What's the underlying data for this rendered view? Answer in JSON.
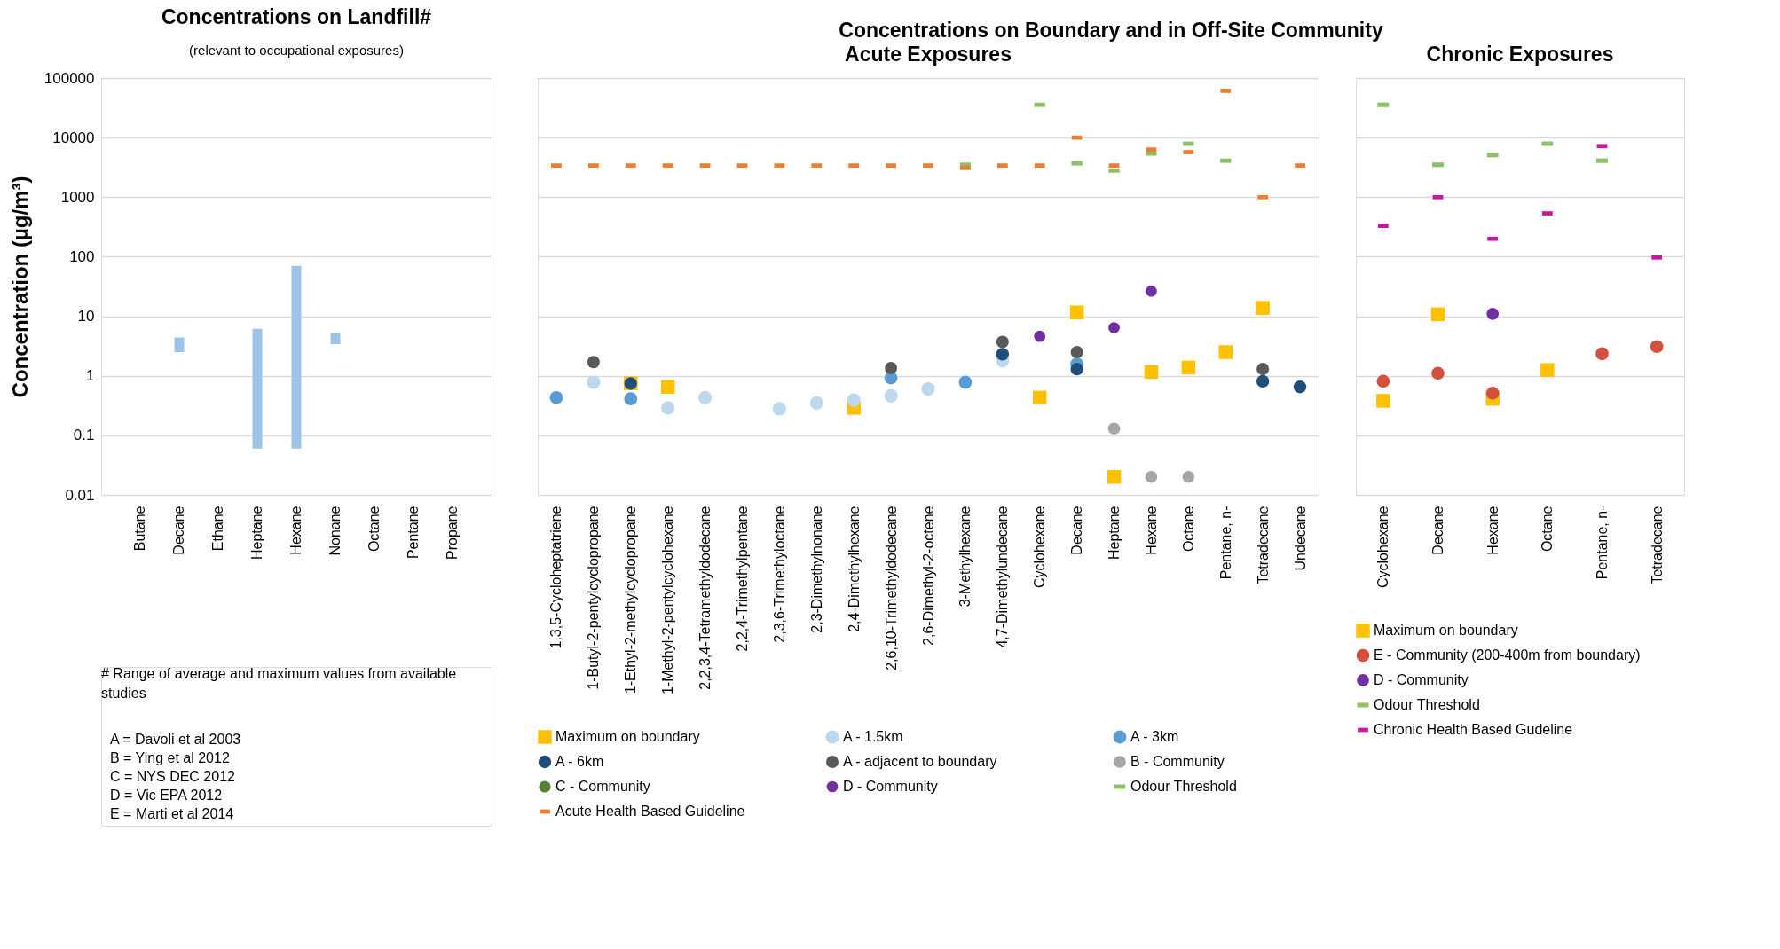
{
  "chart_data": [
    {
      "type": "bar",
      "title": "Concentrations on Landfill#",
      "subtitle": "(relevant to occupational exposures)",
      "ylabel": "Concentration (µg/m³)",
      "categories": [
        "Butane",
        "Decane",
        "Ethane",
        "Heptane",
        "Hexane",
        "Nonane",
        "Octane",
        "Pentane",
        "Propane"
      ],
      "base": [
        null,
        2.5,
        null,
        0.06,
        0.06,
        3.4,
        null,
        null,
        null
      ],
      "values": [
        null,
        1.9,
        null,
        6.1,
        70,
        1.8,
        null,
        null,
        null
      ],
      "color": "#9dc3e6",
      "log": true,
      "ylim": [
        0.01,
        100000
      ],
      "yticks": [
        0.01,
        0.1,
        1,
        10,
        100,
        1000,
        10000,
        100000
      ],
      "grid": "y",
      "annotations": [
        "# Range of average and maximum values from available studies",
        "A = Davoli et al 2003",
        "B = Ying et al 2012",
        "C = NYS DEC 2012",
        "D = Vic EPA 2012",
        "E = Marti et al 2014"
      ]
    },
    {
      "type": "scatter",
      "title": "Concentrations on Boundary and in Off-Site Community",
      "subtitle": "Acute Exposures",
      "categories": [
        "1,3,5-Cycloheptatriene",
        "1-Butyl-2-pentylcyclopropane",
        "1-Ethyl-2-methylcyclopropane",
        "1-Methyl-2-pentylcyclohexane",
        "2,2,3,4-Tetramethyldodecane",
        "2,2,4-Trimethylpentane",
        "2,3,6-Trimethyloctane",
        "2,3-Dimethylnonane",
        "2,4-Dimethylhexane",
        "2,6,10-Trimethyldodecane",
        "2,6-Dimethyl-2-octene",
        "3-Methylhexane",
        "4,7-Dimethylundecane",
        "Cyclohexane",
        "Decane",
        "Heptane",
        "Hexane",
        "Octane",
        "Pentane, n-",
        "Tetradecane",
        "Undecane"
      ],
      "series": [
        {
          "name": "Maximum on boundary",
          "color": "#ffc000",
          "marker": "square",
          "values": [
            null,
            null,
            0.75,
            0.65,
            null,
            null,
            null,
            null,
            0.29,
            null,
            null,
            null,
            null,
            0.43,
            11.6,
            0.02,
            1.16,
            1.38,
            2.5,
            13.8,
            null
          ]
        },
        {
          "name": "A - 1.5km",
          "color": "#bdd7ee",
          "marker": "circle",
          "values": [
            null,
            0.78,
            null,
            0.29,
            0.43,
            null,
            0.28,
            0.35,
            0.39,
            0.46,
            0.6,
            null,
            1.8,
            null,
            null,
            null,
            null,
            null,
            null,
            null,
            null
          ]
        },
        {
          "name": "A - 3km",
          "color": "#5b9bd5",
          "marker": "circle",
          "values": [
            0.43,
            null,
            0.41,
            null,
            null,
            null,
            null,
            null,
            null,
            0.92,
            null,
            0.78,
            null,
            null,
            1.57,
            null,
            null,
            null,
            null,
            null,
            null
          ]
        },
        {
          "name": "A - 6km",
          "color": "#1f4e79",
          "marker": "circle",
          "values": [
            null,
            null,
            0.74,
            null,
            null,
            null,
            null,
            null,
            null,
            null,
            null,
            null,
            2.3,
            null,
            1.3,
            null,
            null,
            null,
            null,
            0.81,
            0.65
          ]
        },
        {
          "name": "A - adjacent to boundary",
          "color": "#595959",
          "marker": "circle",
          "values": [
            null,
            1.7,
            null,
            null,
            null,
            null,
            null,
            null,
            null,
            1.35,
            null,
            null,
            3.7,
            null,
            2.5,
            null,
            null,
            null,
            null,
            1.3,
            null
          ]
        },
        {
          "name": "B - Community",
          "color": "#a5a5a5",
          "marker": "circle",
          "values": [
            null,
            null,
            null,
            null,
            null,
            null,
            null,
            null,
            null,
            null,
            null,
            null,
            null,
            null,
            null,
            0.13,
            0.02,
            0.02,
            null,
            null,
            null
          ]
        },
        {
          "name": "C - Community",
          "color": "#548235",
          "marker": "circle",
          "values": [
            null,
            null,
            null,
            null,
            null,
            null,
            null,
            null,
            null,
            null,
            null,
            null,
            null,
            null,
            null,
            null,
            null,
            null,
            null,
            null,
            null
          ]
        },
        {
          "name": "D - Community",
          "color": "#7030a0",
          "marker": "circle",
          "values": [
            null,
            null,
            null,
            null,
            null,
            null,
            null,
            null,
            null,
            null,
            null,
            null,
            null,
            4.6,
            null,
            6.4,
            26.5,
            null,
            null,
            null,
            null
          ]
        },
        {
          "name": "Odour Threshold",
          "color": "#8cc168",
          "values": [
            null,
            null,
            null,
            null,
            null,
            null,
            null,
            null,
            null,
            null,
            null,
            3500,
            null,
            35500,
            3700,
            2800,
            5400,
            7900,
            4100,
            null,
            null
          ]
        },
        {
          "name": "Acute Health Based Guideline",
          "color": "#ed7d31",
          "values": [
            3400,
            3400,
            3400,
            3400,
            3400,
            3400,
            3400,
            3400,
            3400,
            3400,
            3400,
            3100,
            3400,
            3400,
            10000,
            3400,
            6300,
            5700,
            61000,
            1000,
            3400
          ]
        }
      ],
      "log": true,
      "ylim": [
        0.01,
        100000
      ],
      "yticks": [
        0.01,
        0.1,
        1,
        10,
        100,
        1000,
        10000,
        100000
      ],
      "grid": "y",
      "tick_labels": "x",
      "legend": "bottom"
    },
    {
      "type": "scatter",
      "title": "Chronic Exposures",
      "categories": [
        "Cyclohexane",
        "Decane",
        "Hexane",
        "Octane",
        "Pentane, n-",
        "Tetradecane"
      ],
      "series": [
        {
          "name": "Maximum on boundary",
          "color": "#ffc000",
          "marker": "square",
          "values": [
            0.38,
            10.8,
            0.41,
            1.25,
            null,
            null
          ]
        },
        {
          "name": "E - Community (200-400m from boundary)",
          "color": "#d5503c",
          "marker": "circle",
          "values": [
            0.81,
            1.1,
            0.51,
            null,
            2.35,
            3.1
          ]
        },
        {
          "name": "D - Community",
          "color": "#7030a0",
          "marker": "circle",
          "values": [
            null,
            null,
            11,
            null,
            null,
            null
          ]
        },
        {
          "name": "Odour Threshold",
          "color": "#8cc168",
          "values": [
            35500,
            3500,
            5100,
            7900,
            4100,
            null
          ]
        },
        {
          "name": "Chronic Health Based Gudeline",
          "color": "#c8189e",
          "values": [
            330,
            1000,
            200,
            535,
            7200,
            97
          ]
        }
      ],
      "log": true,
      "ylim": [
        0.01,
        100000
      ],
      "yticks": [
        0.01,
        0.1,
        1,
        10,
        100,
        1000,
        10000,
        100000
      ],
      "grid": "y",
      "tick_labels": "x",
      "legend": "bottom"
    }
  ]
}
